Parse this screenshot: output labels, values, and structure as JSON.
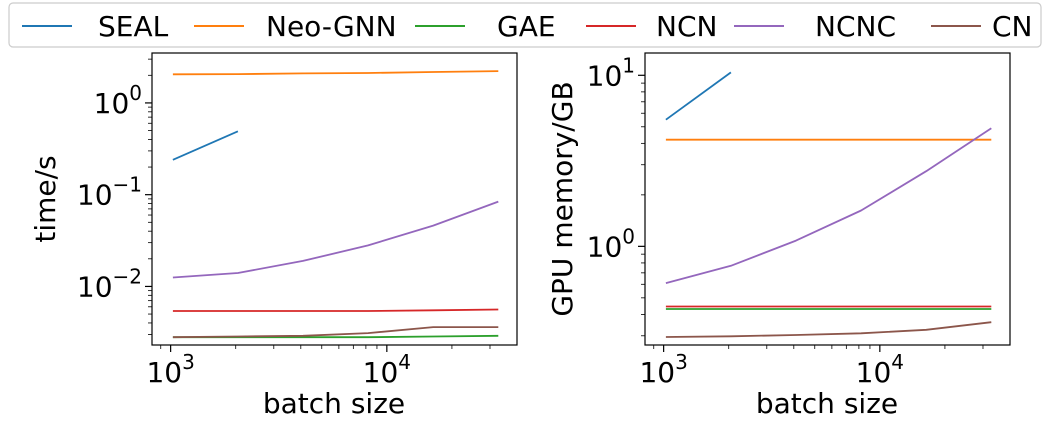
{
  "chart_data": [
    {
      "type": "line",
      "title": "",
      "xlabel": "batch size",
      "ylabel": "time/s",
      "xscale": "log",
      "yscale": "log",
      "xlim": [
        820,
        40000
      ],
      "ylim": [
        0.0023,
        3.5
      ],
      "xticks": [
        {
          "base": "10",
          "exp": "3",
          "value": 1000
        },
        {
          "base": "10",
          "exp": "4",
          "value": 10000
        }
      ],
      "yticks": [
        {
          "base": "10",
          "exp": "0",
          "value": 1
        },
        {
          "base": "10",
          "exp": "−1",
          "value": 0.1
        },
        {
          "base": "10",
          "exp": "−2",
          "value": 0.01
        }
      ],
      "series": [
        {
          "name": "SEAL",
          "color": "#1f77b4",
          "x": [
            1024,
            2048
          ],
          "y": [
            0.24,
            0.49
          ]
        },
        {
          "name": "Neo-GNN",
          "color": "#ff7f0e",
          "x": [
            1024,
            2048,
            4096,
            8192,
            16384,
            32768
          ],
          "y": [
            2.05,
            2.06,
            2.1,
            2.12,
            2.17,
            2.22
          ]
        },
        {
          "name": "GAE",
          "color": "#2ca02c",
          "x": [
            1024,
            2048,
            4096,
            8192,
            16384,
            32768
          ],
          "y": [
            0.0028,
            0.0028,
            0.0028,
            0.0028,
            0.00285,
            0.0029
          ]
        },
        {
          "name": "NCN",
          "color": "#d62728",
          "x": [
            1024,
            2048,
            4096,
            8192,
            16384,
            32768
          ],
          "y": [
            0.0054,
            0.0054,
            0.0054,
            0.0054,
            0.0055,
            0.0056
          ]
        },
        {
          "name": "NCNC",
          "color": "#9467bd",
          "x": [
            1024,
            2048,
            4096,
            8192,
            16384,
            32768
          ],
          "y": [
            0.0125,
            0.014,
            0.019,
            0.028,
            0.046,
            0.084
          ]
        },
        {
          "name": "CN",
          "color": "#8c564b",
          "x": [
            1024,
            2048,
            4096,
            8192,
            16384,
            32768
          ],
          "y": [
            0.0028,
            0.00285,
            0.0029,
            0.0031,
            0.0036,
            0.0036
          ]
        }
      ]
    },
    {
      "type": "line",
      "title": "",
      "xlabel": "batch size",
      "ylabel": "GPU memory/GB",
      "xscale": "log",
      "yscale": "log",
      "xlim": [
        820,
        40000
      ],
      "ylim": [
        0.265,
        13.5
      ],
      "xticks": [
        {
          "base": "10",
          "exp": "3",
          "value": 1000
        },
        {
          "base": "10",
          "exp": "4",
          "value": 10000
        }
      ],
      "yticks": [
        {
          "base": "10",
          "exp": "1",
          "value": 10
        },
        {
          "base": "10",
          "exp": "0",
          "value": 1
        }
      ],
      "series": [
        {
          "name": "SEAL",
          "color": "#1f77b4",
          "x": [
            1024,
            2048
          ],
          "y": [
            5.5,
            10.4
          ]
        },
        {
          "name": "Neo-GNN",
          "color": "#ff7f0e",
          "x": [
            1024,
            2048,
            4096,
            8192,
            16384,
            32768
          ],
          "y": [
            4.2,
            4.2,
            4.2,
            4.2,
            4.2,
            4.2
          ]
        },
        {
          "name": "GAE",
          "color": "#2ca02c",
          "x": [
            1024,
            2048,
            4096,
            8192,
            16384,
            32768
          ],
          "y": [
            0.43,
            0.43,
            0.43,
            0.43,
            0.43,
            0.43
          ]
        },
        {
          "name": "NCN",
          "color": "#d62728",
          "x": [
            1024,
            2048,
            4096,
            8192,
            16384,
            32768
          ],
          "y": [
            0.445,
            0.445,
            0.445,
            0.445,
            0.445,
            0.445
          ]
        },
        {
          "name": "NCNC",
          "color": "#9467bd",
          "x": [
            1024,
            2048,
            4096,
            8192,
            16384,
            32768
          ],
          "y": [
            0.61,
            0.77,
            1.08,
            1.62,
            2.75,
            4.9
          ]
        },
        {
          "name": "CN",
          "color": "#8c564b",
          "x": [
            1024,
            2048,
            4096,
            8192,
            16384,
            32768
          ],
          "y": [
            0.295,
            0.298,
            0.303,
            0.31,
            0.325,
            0.36
          ]
        }
      ]
    }
  ],
  "legend": {
    "placement": "top",
    "entries": [
      {
        "name": "SEAL",
        "color": "#1f77b4"
      },
      {
        "name": "Neo-GNN",
        "color": "#ff7f0e"
      },
      {
        "name": "GAE",
        "color": "#2ca02c"
      },
      {
        "name": "NCN",
        "color": "#d62728"
      },
      {
        "name": "NCNC",
        "color": "#9467bd"
      },
      {
        "name": "CN",
        "color": "#8c564b"
      }
    ]
  }
}
